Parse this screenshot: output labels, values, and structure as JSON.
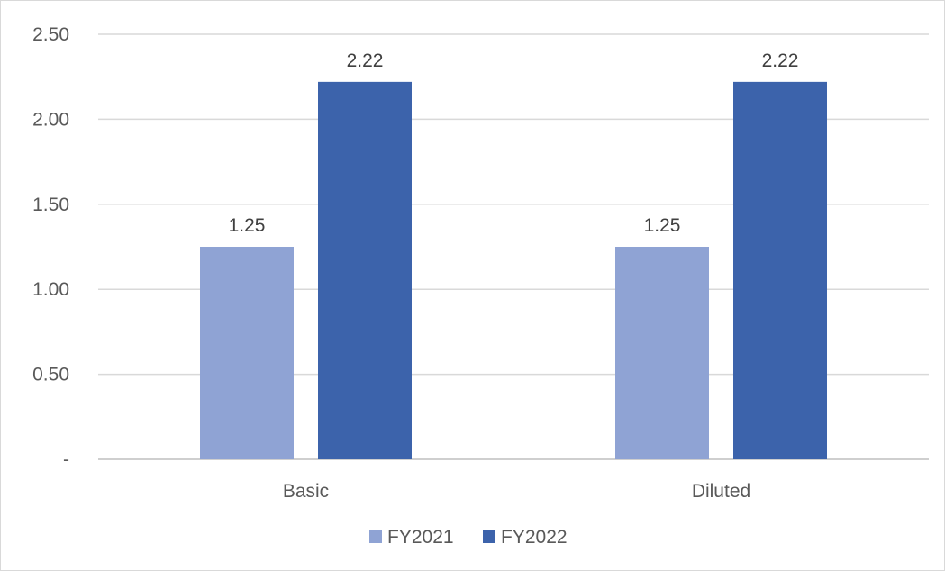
{
  "chart_data": {
    "type": "bar",
    "title": "",
    "xlabel": "",
    "ylabel": "",
    "categories": [
      "Basic",
      "Diluted"
    ],
    "series": [
      {
        "name": "FY2021",
        "color": "#8FA3D4",
        "values": [
          1.25,
          1.25
        ],
        "labels": [
          "1.25",
          "1.25"
        ]
      },
      {
        "name": "FY2022",
        "color": "#3C63AB",
        "values": [
          2.22,
          2.22
        ],
        "labels": [
          "2.22",
          "2.22"
        ]
      }
    ],
    "ylim": [
      0,
      2.5
    ],
    "yticks": [
      {
        "value": 0,
        "label": "-"
      },
      {
        "value": 0.5,
        "label": "0.50"
      },
      {
        "value": 1.0,
        "label": "1.00"
      },
      {
        "value": 1.5,
        "label": "1.50"
      },
      {
        "value": 2.0,
        "label": "2.00"
      },
      {
        "value": 2.5,
        "label": "2.50"
      }
    ],
    "grid": true,
    "legend": "bottom-center"
  }
}
